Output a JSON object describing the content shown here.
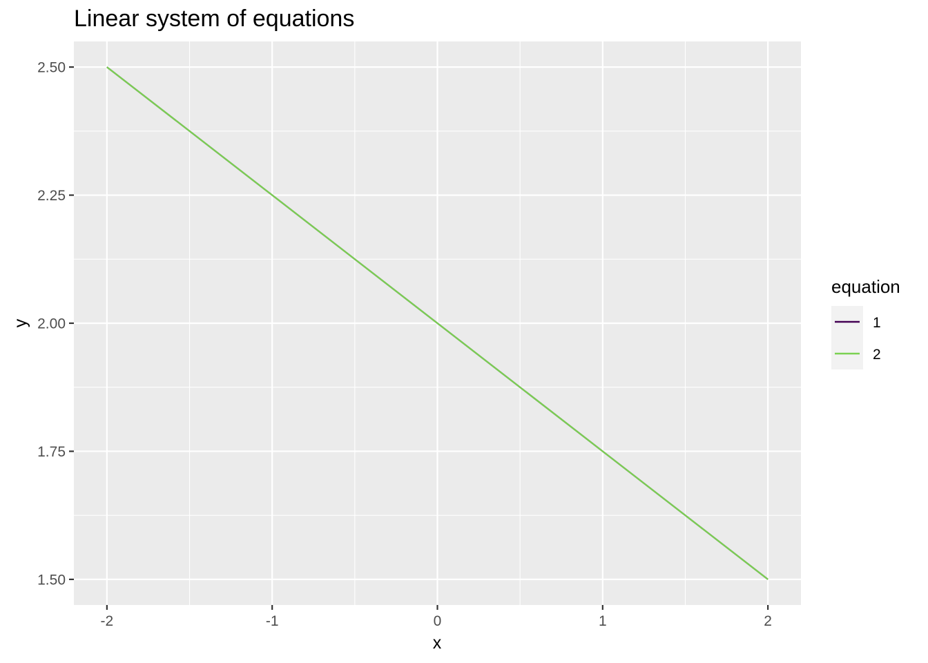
{
  "chart_data": {
    "type": "line",
    "title": "Linear system of equations",
    "xlabel": "x",
    "ylabel": "y",
    "xlim": [
      -2.2,
      2.2
    ],
    "ylim": [
      1.45,
      2.55
    ],
    "x_ticks": [
      -2,
      -1,
      0,
      1,
      2
    ],
    "x_tick_labels": [
      "-2",
      "-1",
      "0",
      "1",
      "2"
    ],
    "x_minor_ticks": [
      -1.5,
      -0.5,
      0.5,
      1.5
    ],
    "y_ticks": [
      1.5,
      1.75,
      2.0,
      2.25,
      2.5
    ],
    "y_tick_labels": [
      "1.50",
      "1.75",
      "2.00",
      "2.25",
      "2.50"
    ],
    "y_minor_ticks": [
      1.625,
      1.875,
      2.125,
      2.375
    ],
    "grid": true,
    "legend": {
      "title": "equation",
      "position": "right"
    },
    "series": [
      {
        "name": "1",
        "color": "#440154",
        "x": [
          -2,
          -1,
          0,
          1,
          2
        ],
        "y": [
          2.5,
          2.25,
          2.0,
          1.75,
          1.5
        ]
      },
      {
        "name": "2",
        "color": "#7AD151",
        "x": [
          -2,
          -1,
          0,
          1,
          2
        ],
        "y": [
          2.5,
          2.25,
          2.0,
          1.75,
          1.5
        ]
      }
    ],
    "colors": {
      "panel_background": "#EBEBEB",
      "grid": "#FFFFFF"
    }
  }
}
